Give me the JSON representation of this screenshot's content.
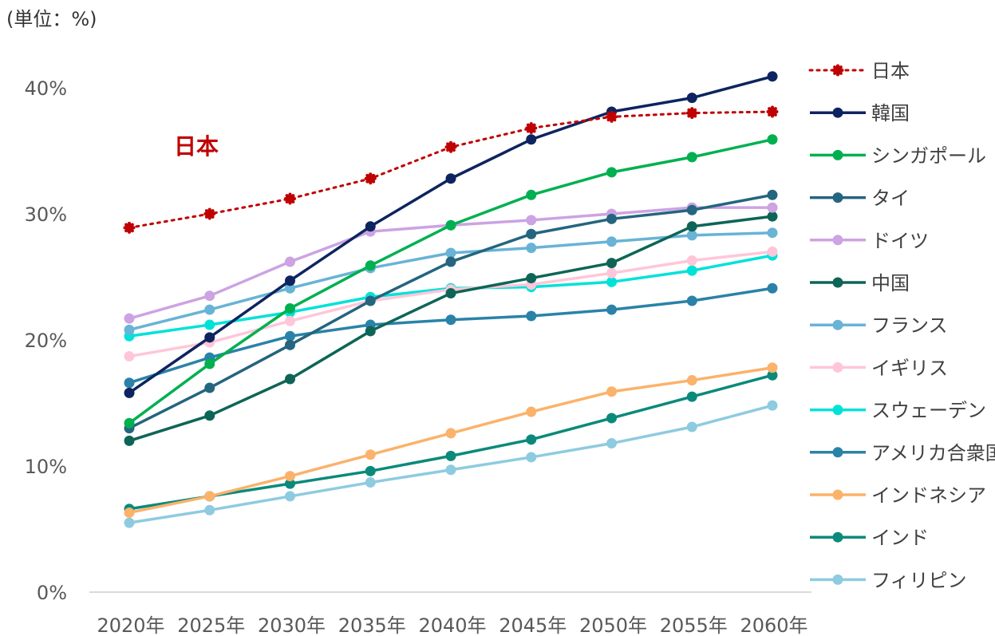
{
  "chart_data": {
    "type": "line",
    "unit_label": "(単位：%)",
    "categories": [
      "2020年",
      "2025年",
      "2030年",
      "2035年",
      "2040年",
      "2045年",
      "2050年",
      "2055年",
      "2060年"
    ],
    "ylim": [
      0,
      40
    ],
    "yticks": [
      0,
      10,
      20,
      30,
      40
    ],
    "ytick_labels": [
      "0%",
      "10%",
      "20%",
      "30%",
      "40%"
    ],
    "grid": false,
    "legend_position": "right",
    "annotation": {
      "text": "日本",
      "color": "#C00000"
    },
    "series": [
      {
        "name": "日本",
        "color": "#C00000",
        "style": "dotted",
        "values": [
          28.9,
          30.0,
          31.2,
          32.8,
          35.3,
          36.8,
          37.7,
          38.0,
          38.1
        ]
      },
      {
        "name": "韓国",
        "color": "#0E2460",
        "style": "solid",
        "values": [
          15.8,
          20.2,
          24.7,
          29.0,
          32.8,
          35.9,
          38.1,
          39.2,
          40.9
        ]
      },
      {
        "name": "シンガポール",
        "color": "#00B050",
        "style": "solid",
        "values": [
          13.4,
          18.1,
          22.5,
          25.9,
          29.1,
          31.5,
          33.3,
          34.5,
          35.9
        ]
      },
      {
        "name": "タイ",
        "color": "#24657F",
        "style": "solid",
        "values": [
          13.0,
          16.2,
          19.6,
          23.1,
          26.2,
          28.4,
          29.6,
          30.3,
          31.5
        ]
      },
      {
        "name": "ドイツ",
        "color": "#CCA3E3",
        "style": "solid",
        "values": [
          21.7,
          23.5,
          26.2,
          28.6,
          29.1,
          29.5,
          30.0,
          30.5,
          30.5
        ]
      },
      {
        "name": "中国",
        "color": "#0E6557",
        "style": "solid",
        "values": [
          12.0,
          14.0,
          16.9,
          20.7,
          23.7,
          24.9,
          26.1,
          29.0,
          29.8
        ]
      },
      {
        "name": "フランス",
        "color": "#68B3D6",
        "style": "solid",
        "values": [
          20.8,
          22.4,
          24.1,
          25.7,
          26.9,
          27.3,
          27.8,
          28.3,
          28.5
        ]
      },
      {
        "name": "イギリス",
        "color": "#FFC6DA",
        "style": "solid",
        "values": [
          18.7,
          19.8,
          21.5,
          23.1,
          24.0,
          24.4,
          25.3,
          26.3,
          27.0
        ]
      },
      {
        "name": "スウェーデン",
        "color": "#00E2D8",
        "style": "solid",
        "values": [
          20.3,
          21.2,
          22.2,
          23.4,
          24.1,
          24.2,
          24.6,
          25.5,
          26.7
        ]
      },
      {
        "name": "アメリカ合衆国",
        "color": "#2A82A8",
        "style": "solid",
        "values": [
          16.6,
          18.6,
          20.3,
          21.2,
          21.6,
          21.9,
          22.4,
          23.1,
          24.1
        ]
      },
      {
        "name": "インドネシア",
        "color": "#FBB26A",
        "style": "solid",
        "values": [
          6.3,
          7.6,
          9.2,
          10.9,
          12.6,
          14.3,
          15.9,
          16.8,
          17.8
        ]
      },
      {
        "name": "インド",
        "color": "#0A8A7A",
        "style": "solid",
        "values": [
          6.6,
          7.6,
          8.6,
          9.6,
          10.8,
          12.1,
          13.8,
          15.5,
          17.2
        ]
      },
      {
        "name": "フィリピン",
        "color": "#8ECBE0",
        "style": "solid",
        "values": [
          5.5,
          6.5,
          7.6,
          8.7,
          9.7,
          10.7,
          11.8,
          13.1,
          14.8
        ]
      }
    ]
  }
}
